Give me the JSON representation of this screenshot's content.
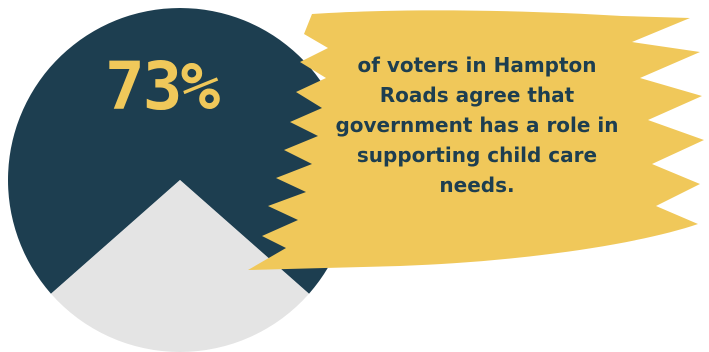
{
  "chart_data": {
    "type": "pie",
    "categories": [
      "agree",
      "other"
    ],
    "values": [
      73,
      27
    ],
    "colors": {
      "agree": "#1d3e50",
      "other": "#e4e4e4",
      "brush": "#f0c85a"
    },
    "stat_label": "73%",
    "caption": "of voters in Hampton Roads agree that government has a role in supporting child care needs."
  }
}
